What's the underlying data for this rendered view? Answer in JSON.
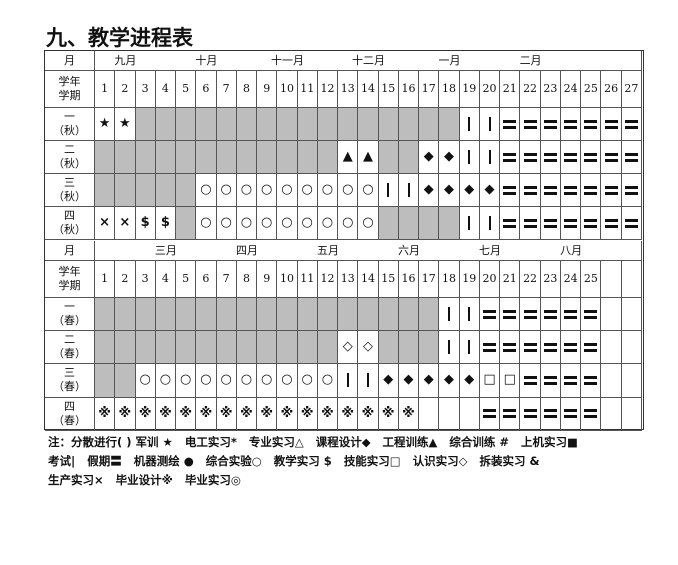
{
  "title": "九、教学进程表",
  "month_label": "月",
  "header_label": "学年\n学期",
  "autumn": {
    "months": [
      "九月",
      "十月",
      "十一月",
      "十二月",
      "一月",
      "二月"
    ],
    "weeks": [
      "1",
      "2",
      "3",
      "4",
      "5",
      "6",
      "7",
      "8",
      "9",
      "10",
      "11",
      "12",
      "13",
      "14",
      "15",
      "16",
      "17",
      "18",
      "19",
      "20",
      "21",
      "22",
      "23",
      "24",
      "25",
      "26",
      "27"
    ],
    "rows": [
      {
        "label": "一\n（秋）",
        "cells": [
          "★",
          "★",
          "G",
          "G",
          "G",
          "G",
          "G",
          "G",
          "G",
          "G",
          "G",
          "G",
          "G",
          "G",
          "G",
          "G",
          "G",
          "G",
          "|",
          "|",
          "=",
          "=",
          "=",
          "=",
          "=",
          "=",
          "="
        ]
      },
      {
        "label": "二\n（秋）",
        "cells": [
          "G",
          "G",
          "G",
          "G",
          "G",
          "G",
          "G",
          "G",
          "G",
          "G",
          "G",
          "G",
          "▲",
          "▲",
          "G",
          "G",
          "◆",
          "◆",
          "|",
          "|",
          "=",
          "=",
          "=",
          "=",
          "=",
          "=",
          "="
        ]
      },
      {
        "label": "三\n（秋）",
        "cells": [
          "G",
          "G",
          "G",
          "G",
          "G",
          "○",
          "○",
          "○",
          "○",
          "○",
          "○",
          "○",
          "○",
          "○",
          "|",
          "|",
          "◆",
          "◆",
          "◆",
          "◆",
          "=",
          "=",
          "=",
          "=",
          "=",
          "=",
          "="
        ]
      },
      {
        "label": "四\n（秋）",
        "cells": [
          "×",
          "×",
          "$",
          "$",
          "G",
          "○",
          "○",
          "○",
          "○",
          "○",
          "○",
          "○",
          "○",
          "○",
          "G",
          "G",
          "G",
          "G",
          "|",
          "|",
          "=",
          "=",
          "=",
          "=",
          "=",
          "=",
          "="
        ]
      }
    ]
  },
  "spring": {
    "months": [
      "三月",
      "四月",
      "五月",
      "六月",
      "七月",
      "八月"
    ],
    "weeks": [
      "1",
      "2",
      "3",
      "4",
      "5",
      "6",
      "7",
      "8",
      "9",
      "10",
      "11",
      "12",
      "13",
      "14",
      "15",
      "16",
      "17",
      "18",
      "19",
      "20",
      "21",
      "22",
      "23",
      "24",
      "25",
      "",
      ""
    ],
    "rows": [
      {
        "label": "一\n（春）",
        "cells": [
          "G",
          "G",
          "G",
          "G",
          "G",
          "G",
          "G",
          "G",
          "G",
          "G",
          "G",
          "G",
          "G",
          "G",
          "G",
          "G",
          "G",
          "|",
          "|",
          "=",
          "=",
          "=",
          "=",
          "=",
          "=",
          "",
          ""
        ]
      },
      {
        "label": "二\n（春）",
        "cells": [
          "G",
          "G",
          "G",
          "G",
          "G",
          "G",
          "G",
          "G",
          "G",
          "G",
          "G",
          "G",
          "◇",
          "◇",
          "G",
          "G",
          "G",
          "|",
          "|",
          "=",
          "=",
          "=",
          "=",
          "=",
          "=",
          "",
          ""
        ]
      },
      {
        "label": "三\n（春）",
        "cells": [
          "G",
          "G",
          "○",
          "○",
          "○",
          "○",
          "○",
          "○",
          "○",
          "○",
          "○",
          "○",
          "|",
          "|",
          "◆",
          "◆",
          "◆",
          "◆",
          "◆",
          "□",
          "□",
          "=",
          "=",
          "=",
          "=",
          "",
          ""
        ]
      },
      {
        "label": "四\n（春）",
        "cells": [
          "※",
          "※",
          "※",
          "※",
          "※",
          "※",
          "※",
          "※",
          "※",
          "※",
          "※",
          "※",
          "※",
          "※",
          "※",
          "※",
          "",
          "",
          "",
          "=",
          "=",
          "=",
          "=",
          "=",
          "=",
          "",
          ""
        ]
      }
    ]
  },
  "notes": [
    "注：分散进行( ) 军训 ★",
    "电工实习*",
    "专业实习△",
    "课程设计◆",
    "工程训练▲",
    "综合训练 #",
    "上机实习■",
    "考试|",
    "假期〓",
    "机器测绘 ●",
    "综合实验○",
    "教学实习 $",
    "技能实习□",
    "认识实习◇",
    "拆装实习 &",
    "生产实习×",
    "毕业设计※",
    "毕业实习◎"
  ]
}
